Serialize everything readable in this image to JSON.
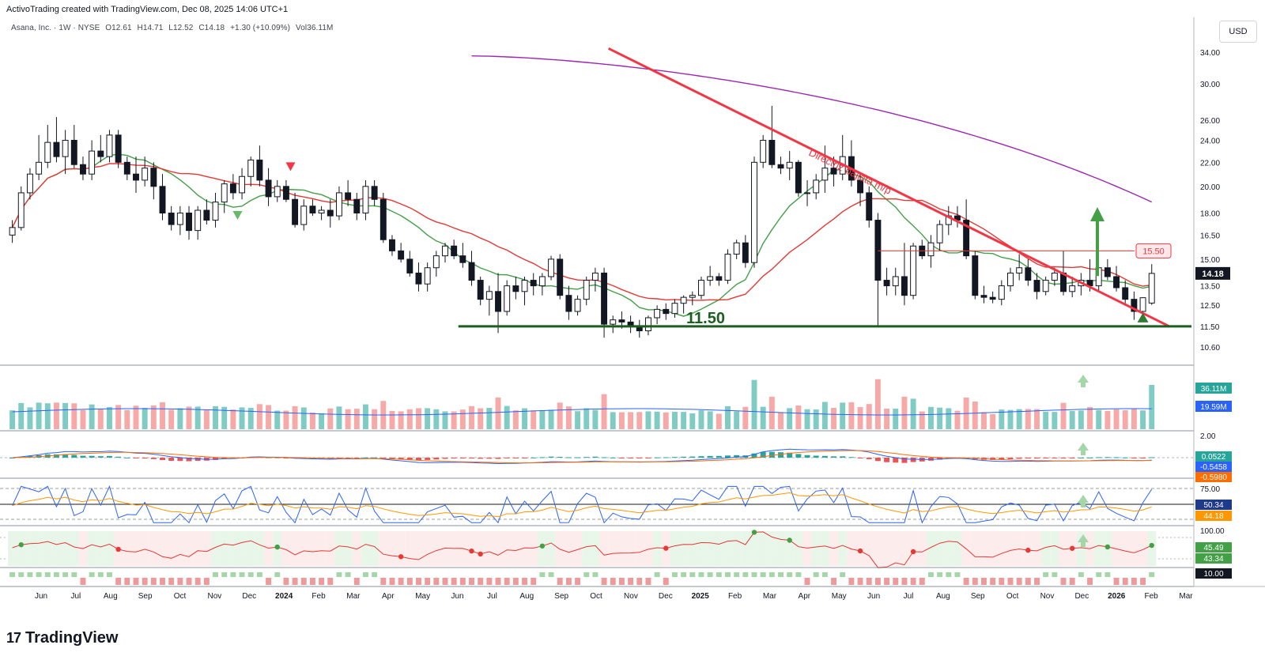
{
  "header": {
    "created_by": "ActivoTrading created with TradingView.com, Dec 08, 2025 14:06 UTC+1"
  },
  "symbol_legend": {
    "name": "Asana, Inc. · 1W · NYSE",
    "open": "O12.61",
    "high": "H14.71",
    "low": "L12.52",
    "close": "C14.18",
    "change": "+1.30 (+10.09%)",
    "volume": "Vol36.11M"
  },
  "currency": "USD",
  "footer": {
    "brand": "TradingView",
    "logo_icon": "tradingview-logo-icon"
  },
  "colors": {
    "up": "#26a69a",
    "down": "#ef5350",
    "trendline": "#f23645",
    "support": "#1b5e20",
    "ma_green": "#43a047",
    "ma_red": "#e53935",
    "ma_purple": "#9c27b0",
    "signal_green": "#2e7d32"
  },
  "chart_data": {
    "type": "candlestick",
    "title": "Asana, Inc. · 1W · NYSE",
    "y_scale": "log",
    "price_axis_ticks": [
      "34.00",
      "30.00",
      "26.00",
      "24.00",
      "22.00",
      "20.00",
      "18.00",
      "16.50",
      "15.00",
      "13.50",
      "12.50",
      "11.50",
      "10.60"
    ],
    "price_axis_values": [
      34,
      30,
      26,
      24,
      22,
      20,
      18,
      16.5,
      15,
      13.5,
      12.5,
      11.5,
      10.6
    ],
    "time_axis_labels": [
      "Jun",
      "Jul",
      "Aug",
      "Sep",
      "Oct",
      "Nov",
      "Dec",
      "2024",
      "Feb",
      "Mar",
      "Apr",
      "May",
      "Jun",
      "Jul",
      "Aug",
      "Sep",
      "Oct",
      "Nov",
      "Dec",
      "2025",
      "Feb",
      "Mar",
      "Apr",
      "May",
      "Jun",
      "Jul",
      "Aug",
      "Sep",
      "Oct",
      "Nov",
      "Dec",
      "2026",
      "Feb",
      "Mar"
    ],
    "time_axis_bold": [
      "2024",
      "2025",
      "2026"
    ],
    "weeks_total": 130,
    "ohlc_weeks": [
      [
        0,
        16.5,
        17.5,
        16.0,
        17.0
      ],
      [
        1,
        17.0,
        20.0,
        16.8,
        19.5
      ],
      [
        2,
        19.5,
        21.5,
        19.0,
        21.0
      ],
      [
        3,
        21.0,
        24.5,
        20.5,
        22.0
      ],
      [
        4,
        22.0,
        25.5,
        21.5,
        23.8
      ],
      [
        5,
        23.8,
        26.3,
        22.0,
        22.5
      ],
      [
        6,
        22.5,
        25.0,
        21.0,
        24.0
      ],
      [
        7,
        24.0,
        25.5,
        21.5,
        21.8
      ],
      [
        8,
        21.8,
        22.5,
        20.5,
        21.0
      ],
      [
        9,
        21.0,
        24.0,
        20.5,
        23.0
      ],
      [
        10,
        23.0,
        24.5,
        22.0,
        22.5
      ],
      [
        11,
        22.5,
        25.0,
        22.0,
        24.5
      ],
      [
        12,
        24.5,
        25.0,
        21.5,
        22.0
      ],
      [
        13,
        22.0,
        22.5,
        20.5,
        21.0
      ],
      [
        14,
        21.0,
        22.5,
        19.5,
        20.5
      ],
      [
        15,
        20.5,
        22.5,
        20.0,
        21.5
      ],
      [
        16,
        21.5,
        22.0,
        19.0,
        20.0
      ],
      [
        17,
        20.0,
        21.0,
        17.5,
        18.0
      ],
      [
        18,
        18.0,
        18.5,
        16.8,
        17.2
      ],
      [
        19,
        17.2,
        18.5,
        16.5,
        18.0
      ],
      [
        20,
        18.0,
        18.5,
        16.2,
        16.8
      ],
      [
        21,
        16.8,
        18.5,
        16.2,
        18.2
      ],
      [
        22,
        18.2,
        19.0,
        17.2,
        17.5
      ],
      [
        23,
        17.5,
        19.5,
        17.0,
        18.8
      ],
      [
        24,
        18.8,
        20.5,
        18.0,
        20.2
      ],
      [
        25,
        20.2,
        21.0,
        19.0,
        19.5
      ],
      [
        26,
        19.5,
        21.5,
        19.0,
        20.8
      ],
      [
        27,
        20.8,
        22.5,
        20.0,
        22.2
      ],
      [
        28,
        22.2,
        23.5,
        20.0,
        20.5
      ],
      [
        29,
        20.5,
        21.5,
        18.5,
        19.2
      ],
      [
        30,
        19.2,
        20.5,
        18.8,
        20.0
      ],
      [
        31,
        20.0,
        20.5,
        18.8,
        19.0
      ],
      [
        32,
        19.0,
        19.5,
        17.0,
        17.2
      ],
      [
        33,
        17.2,
        19.0,
        16.8,
        18.5
      ],
      [
        34,
        18.5,
        19.0,
        17.8,
        18.0
      ],
      [
        35,
        18.0,
        18.5,
        17.5,
        18.2
      ],
      [
        36,
        18.2,
        19.0,
        17.0,
        17.8
      ],
      [
        37,
        17.8,
        20.0,
        17.5,
        19.5
      ],
      [
        38,
        19.5,
        20.5,
        18.5,
        19.0
      ],
      [
        39,
        19.0,
        19.5,
        17.5,
        18.0
      ],
      [
        40,
        18.0,
        20.5,
        17.5,
        20.0
      ],
      [
        41,
        20.0,
        20.5,
        18.5,
        19.0
      ],
      [
        42,
        19.0,
        19.5,
        16.0,
        16.2
      ],
      [
        43,
        16.2,
        16.5,
        15.2,
        15.5
      ],
      [
        44,
        15.5,
        16.0,
        14.8,
        15.0
      ],
      [
        45,
        15.0,
        15.5,
        14.0,
        14.2
      ],
      [
        46,
        14.2,
        14.8,
        13.2,
        13.6
      ],
      [
        47,
        13.6,
        14.8,
        13.2,
        14.5
      ],
      [
        48,
        14.5,
        15.5,
        14.0,
        15.2
      ],
      [
        49,
        15.2,
        16.0,
        14.8,
        15.8
      ],
      [
        50,
        15.8,
        16.2,
        15.0,
        15.2
      ],
      [
        51,
        15.2,
        16.0,
        14.5,
        14.8
      ],
      [
        52,
        14.8,
        15.5,
        13.5,
        13.8
      ],
      [
        53,
        13.8,
        14.0,
        12.5,
        12.8
      ],
      [
        54,
        12.8,
        13.5,
        12.0,
        13.2
      ],
      [
        55,
        13.2,
        14.2,
        11.2,
        12.2
      ],
      [
        56,
        12.2,
        13.8,
        12.0,
        13.5
      ],
      [
        57,
        13.5,
        14.0,
        12.8,
        13.2
      ],
      [
        58,
        13.2,
        14.0,
        12.5,
        13.8
      ],
      [
        59,
        13.8,
        14.2,
        13.0,
        13.5
      ],
      [
        60,
        13.5,
        14.2,
        13.0,
        14.0
      ],
      [
        61,
        14.0,
        15.2,
        13.8,
        15.0
      ],
      [
        62,
        15.0,
        15.3,
        12.8,
        13.0
      ],
      [
        63,
        13.0,
        13.5,
        11.8,
        12.2
      ],
      [
        64,
        12.2,
        13.0,
        12.0,
        12.8
      ],
      [
        65,
        12.8,
        14.0,
        12.5,
        13.8
      ],
      [
        66,
        13.8,
        14.5,
        13.2,
        14.2
      ],
      [
        67,
        14.2,
        14.5,
        11.0,
        11.6
      ],
      [
        68,
        11.6,
        12.0,
        11.2,
        11.8
      ],
      [
        69,
        11.8,
        12.2,
        11.4,
        11.7
      ],
      [
        70,
        11.7,
        12.0,
        11.2,
        11.5
      ],
      [
        71,
        11.5,
        11.8,
        11.0,
        11.3
      ],
      [
        72,
        11.3,
        12.0,
        11.1,
        11.9
      ],
      [
        73,
        11.9,
        12.5,
        11.6,
        12.3
      ],
      [
        74,
        12.3,
        12.6,
        11.8,
        12.1
      ],
      [
        75,
        12.1,
        12.8,
        11.9,
        12.6
      ],
      [
        76,
        12.6,
        13.0,
        12.1,
        12.9
      ],
      [
        77,
        12.9,
        13.2,
        12.5,
        13.0
      ],
      [
        78,
        13.0,
        14.0,
        12.8,
        13.8
      ],
      [
        79,
        13.8,
        14.6,
        13.5,
        14.0
      ],
      [
        80,
        14.0,
        14.2,
        13.5,
        13.8
      ],
      [
        81,
        13.8,
        15.6,
        13.6,
        15.3
      ],
      [
        82,
        15.3,
        16.2,
        15.0,
        16.0
      ],
      [
        83,
        16.0,
        16.5,
        14.5,
        14.8
      ],
      [
        84,
        14.8,
        22.5,
        14.5,
        22.0
      ],
      [
        85,
        22.0,
        24.5,
        21.5,
        24.0
      ],
      [
        86,
        24.0,
        27.5,
        21.5,
        21.8
      ],
      [
        87,
        21.8,
        22.5,
        21.0,
        21.5
      ],
      [
        88,
        21.5,
        23.0,
        20.5,
        22.0
      ],
      [
        89,
        22.0,
        22.2,
        19.2,
        19.5
      ],
      [
        90,
        19.5,
        20.5,
        18.5,
        19.5
      ],
      [
        91,
        19.5,
        21.0,
        19.0,
        20.5
      ],
      [
        92,
        20.5,
        23.5,
        19.5,
        21.5
      ],
      [
        93,
        21.5,
        22.5,
        20.0,
        21.0
      ],
      [
        94,
        21.0,
        24.5,
        20.5,
        22.5
      ],
      [
        95,
        22.5,
        24.0,
        20.0,
        20.5
      ],
      [
        96,
        20.5,
        21.0,
        18.5,
        19.5
      ],
      [
        97,
        19.5,
        20.0,
        17.0,
        17.5
      ],
      [
        98,
        17.5,
        18.0,
        11.5,
        13.8
      ],
      [
        99,
        13.8,
        14.5,
        13.0,
        13.5
      ],
      [
        100,
        13.5,
        14.5,
        13.0,
        14.0
      ],
      [
        101,
        14.0,
        16.0,
        12.5,
        13.0
      ],
      [
        102,
        13.0,
        16.0,
        12.8,
        15.8
      ],
      [
        103,
        15.8,
        16.2,
        15.0,
        15.2
      ],
      [
        104,
        15.2,
        16.5,
        14.5,
        16.0
      ],
      [
        105,
        16.0,
        17.5,
        15.5,
        17.2
      ],
      [
        106,
        17.2,
        18.5,
        16.5,
        17.8
      ],
      [
        107,
        17.8,
        18.5,
        17.0,
        17.5
      ],
      [
        108,
        17.5,
        19.0,
        15.0,
        15.2
      ],
      [
        109,
        15.2,
        15.5,
        12.8,
        13.0
      ],
      [
        110,
        13.0,
        13.5,
        12.6,
        12.9
      ],
      [
        111,
        12.9,
        13.2,
        12.6,
        12.8
      ],
      [
        112,
        12.8,
        13.8,
        12.5,
        13.5
      ],
      [
        113,
        13.5,
        14.5,
        13.2,
        14.2
      ],
      [
        114,
        14.2,
        15.3,
        13.8,
        14.5
      ],
      [
        115,
        14.5,
        15.0,
        13.5,
        13.8
      ],
      [
        116,
        13.8,
        14.2,
        12.8,
        13.2
      ],
      [
        117,
        13.2,
        14.0,
        13.0,
        13.8
      ],
      [
        118,
        13.8,
        14.5,
        13.5,
        14.2
      ],
      [
        119,
        14.2,
        15.5,
        13.0,
        13.2
      ],
      [
        120,
        13.2,
        14.0,
        12.9,
        13.5
      ],
      [
        121,
        13.5,
        14.2,
        13.0,
        13.8
      ],
      [
        122,
        13.8,
        15.0,
        13.2,
        13.5
      ],
      [
        123,
        13.5,
        14.5,
        13.2,
        14.5
      ],
      [
        124,
        14.5,
        15.0,
        13.8,
        14.0
      ],
      [
        125,
        14.0,
        14.6,
        13.2,
        13.4
      ],
      [
        126,
        13.4,
        13.8,
        12.6,
        12.8
      ],
      [
        127,
        12.8,
        13.2,
        11.8,
        12.2
      ],
      [
        128,
        12.2,
        12.9,
        11.8,
        12.88
      ],
      [
        129,
        12.61,
        14.71,
        12.52,
        14.18
      ]
    ],
    "lines": {
      "ma_green_label": "short moving average",
      "ma_red_label": "medium moving average",
      "ma_purple_label": "long moving average"
    },
    "support_level": 11.5,
    "support_label": "11.50",
    "resistance_level": 15.5,
    "resistance_label": "15.50",
    "last_price": 14.18,
    "last_price_label": "14.18",
    "trendline_label": "Directriz bajista m/p",
    "trendline": {
      "start_week": 67.5,
      "start_price": 34.5,
      "end_week": 131,
      "end_price": 11.5
    },
    "volume_pane": {
      "last_label": "36.11M",
      "ma_label": "19.59M"
    },
    "macd_pane": {
      "top_tick": "2.00",
      "values": [
        "0.0522",
        "-0.5458",
        "-0.5980"
      ]
    },
    "rsi_pane": {
      "ticks": [
        "75.00"
      ],
      "values": [
        "50.34",
        "44.18"
      ]
    },
    "dmi_pane": {
      "ticks": [
        "100.00"
      ],
      "values": [
        "45.49",
        "43.34"
      ]
    },
    "bottom_pane": {
      "value": "10.00"
    }
  }
}
